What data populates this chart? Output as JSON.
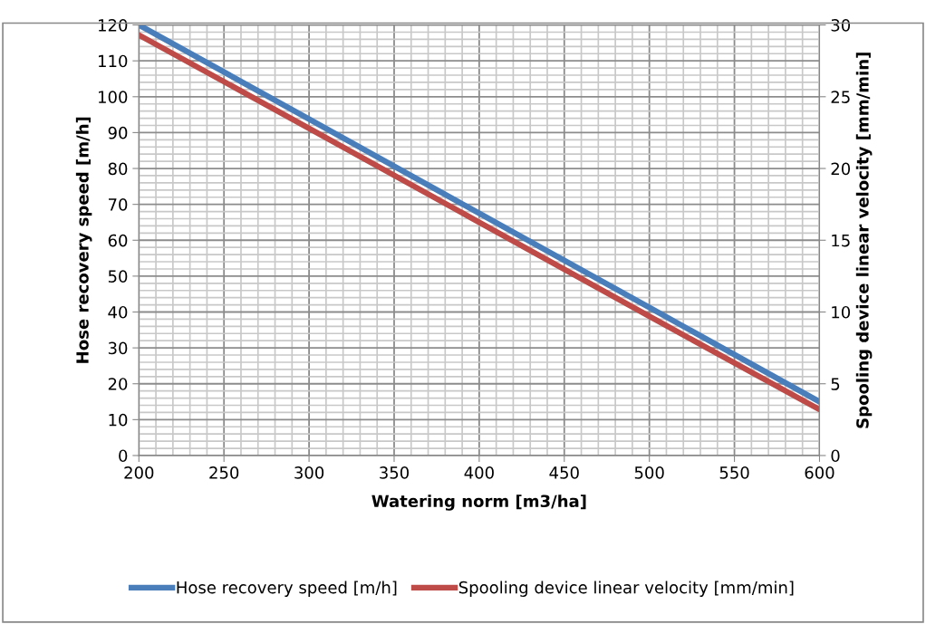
{
  "chart_data": {
    "type": "line",
    "xlabel": "Watering norm [m3/ha]",
    "ylabel": "Hose recovery speed [m/h]",
    "y2label": "Spooling device linear velocity [mm/min]",
    "x": [
      200,
      300,
      400,
      500,
      600
    ],
    "series": [
      {
        "name": "Hose recovery speed [m/h]",
        "color": "#4a7ebb",
        "values": [
          120,
          93.75,
          67.5,
          41.25,
          15
        ]
      },
      {
        "name": "Spooling device linear velocity [mm/min]",
        "color": "#be4b48",
        "axis": "y2",
        "values": [
          29.3,
          22.8,
          16.25,
          9.7,
          3.2
        ]
      }
    ],
    "xlim": [
      200,
      600
    ],
    "xticks": [
      200,
      250,
      300,
      350,
      400,
      450,
      500,
      550,
      600
    ],
    "ylim": [
      0,
      120
    ],
    "yticks": [
      0,
      10,
      20,
      30,
      40,
      50,
      60,
      70,
      80,
      90,
      100,
      110,
      120
    ],
    "y2lim": [
      0,
      30
    ],
    "y2ticks": [
      0,
      5,
      10,
      15,
      20,
      25,
      30
    ],
    "grid": true,
    "legend": "bottom",
    "marker": "none",
    "line_style": "solid"
  }
}
